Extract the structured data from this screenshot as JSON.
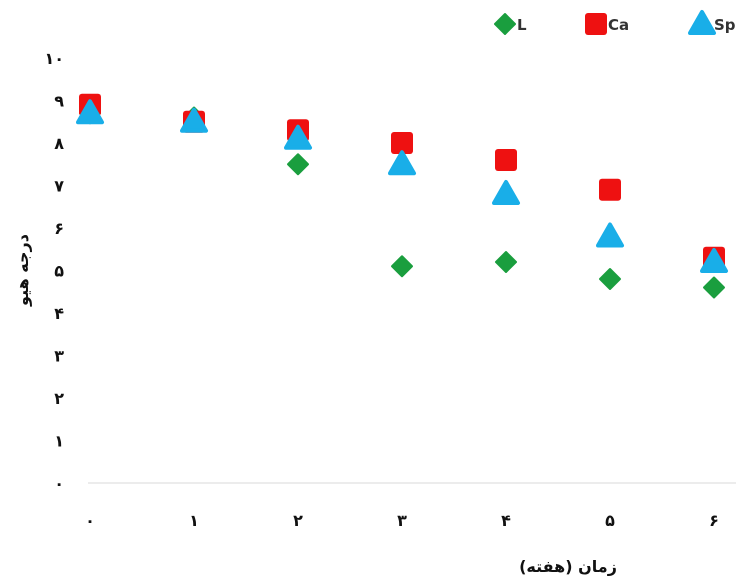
{
  "chart_data": {
    "type": "scatter",
    "title": "",
    "xlabel": "زمان (هفته)",
    "ylabel": "درجه هیو",
    "x": [
      0,
      1,
      2,
      3,
      4,
      5,
      6
    ],
    "x_tick_labels": [
      "۰",
      "۱",
      "۲",
      "۳",
      "۴",
      "۵",
      "۶"
    ],
    "ylim": [
      0,
      10
    ],
    "y_ticks": [
      0,
      1,
      2,
      3,
      4,
      5,
      6,
      7,
      8,
      9,
      10
    ],
    "y_tick_labels": [
      "۰",
      "۱",
      "۲",
      "۳",
      "۴",
      "۵",
      "۶",
      "۷",
      "۸",
      "۹",
      "۱۰"
    ],
    "grid": false,
    "legend_position": "top-right",
    "series": [
      {
        "name": "L",
        "marker": "diamond",
        "color": "#1a9e3e",
        "values": [
          8.7,
          8.6,
          7.5,
          5.1,
          5.2,
          4.8,
          4.6
        ]
      },
      {
        "name": "Ca",
        "marker": "square",
        "color": "#ee1111",
        "values": [
          8.9,
          8.5,
          8.3,
          8.0,
          7.6,
          6.9,
          5.3
        ]
      },
      {
        "name": "Sp",
        "marker": "triangle",
        "color": "#19aee8",
        "values": [
          8.7,
          8.5,
          8.1,
          7.5,
          6.8,
          5.8,
          5.2
        ]
      }
    ]
  }
}
